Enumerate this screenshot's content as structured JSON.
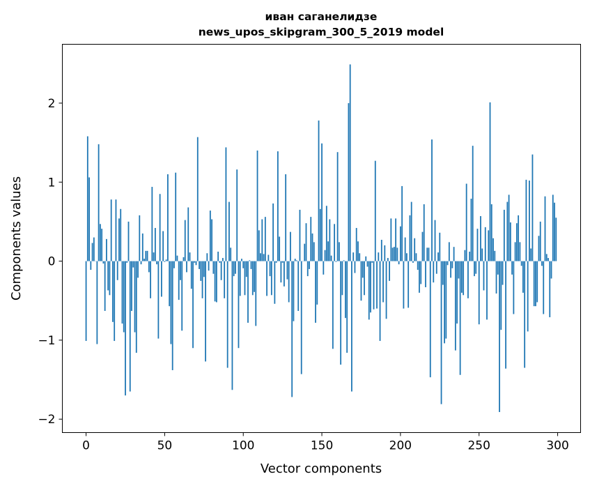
{
  "chart_data": {
    "type": "bar",
    "title": [
      "иван саганелидзе",
      "news_upos_skipgram_300_5_2019 model"
    ],
    "xlabel": "Vector components",
    "ylabel": "Components values",
    "xlim": [
      -15.1,
      314.6
    ],
    "ylim": [
      -2.17,
      2.745
    ],
    "xticks": [
      0,
      50,
      100,
      150,
      200,
      250,
      300
    ],
    "xtick_labels": [
      "0",
      "50",
      "100",
      "150",
      "200",
      "250",
      "300"
    ],
    "yticks": [
      -2,
      -1,
      0,
      1,
      2
    ],
    "ytick_labels": [
      "−2",
      "−1",
      "0",
      "1",
      "2"
    ],
    "grid": false,
    "color": "#1f77b4",
    "values": [
      -1.01,
      1.58,
      1.06,
      -0.11,
      0.23,
      0.3,
      0.0,
      -1.05,
      1.48,
      0.47,
      0.41,
      -0.03,
      -0.63,
      0.28,
      -0.37,
      -0.43,
      0.78,
      -0.77,
      -1.01,
      0.78,
      -0.24,
      0.54,
      0.66,
      -0.79,
      -0.9,
      -1.7,
      -0.02,
      0.5,
      -1.65,
      -0.63,
      -0.08,
      -0.9,
      -1.16,
      -0.21,
      0.58,
      -0.04,
      0.35,
      0.03,
      0.13,
      0.13,
      -0.14,
      -0.47,
      0.94,
      0.11,
      0.42,
      -0.04,
      -0.98,
      0.85,
      -0.45,
      0.38,
      -0.01,
      0.02,
      1.1,
      -0.57,
      -1.05,
      -1.38,
      -0.09,
      1.12,
      0.07,
      -0.49,
      -0.24,
      -0.88,
      0.05,
      0.52,
      -0.14,
      0.68,
      0.11,
      -0.35,
      -1.1,
      -0.02,
      -0.05,
      1.57,
      -0.1,
      -0.25,
      -0.47,
      -0.2,
      -1.27,
      0.1,
      -0.12,
      0.64,
      0.53,
      -0.16,
      -0.51,
      -0.52,
      0.12,
      -0.02,
      -0.24,
      0.04,
      -0.47,
      1.44,
      -1.35,
      0.75,
      0.17,
      -1.63,
      -0.19,
      -0.16,
      1.16,
      -1.1,
      -0.44,
      0.03,
      -0.09,
      -0.43,
      -0.2,
      -0.78,
      0.01,
      -0.1,
      -0.43,
      -0.39,
      -0.82,
      1.4,
      0.39,
      0.1,
      0.53,
      0.09,
      0.56,
      -0.44,
      0.08,
      -0.19,
      -0.43,
      0.73,
      -0.54,
      -0.02,
      1.39,
      0.31,
      -0.27,
      -0.02,
      -0.32,
      1.1,
      -0.23,
      -0.52,
      0.37,
      -1.72,
      -0.76,
      0.03,
      0.01,
      -0.63,
      0.65,
      -1.43,
      0.0,
      0.22,
      0.48,
      -0.19,
      -0.1,
      0.56,
      0.35,
      0.24,
      -0.78,
      -0.55,
      1.78,
      0.66,
      1.49,
      -0.17,
      0.14,
      0.7,
      0.25,
      0.53,
      0.07,
      -1.11,
      0.47,
      -0.01,
      1.38,
      0.24,
      -1.31,
      -0.43,
      0.01,
      -0.72,
      -1.16,
      2.0,
      2.49,
      -1.65,
      0.11,
      -0.15,
      0.42,
      0.25,
      0.1,
      -0.5,
      -0.21,
      -0.43,
      0.06,
      -0.07,
      -0.74,
      -0.65,
      -0.02,
      -0.61,
      1.27,
      -0.6,
      0.11,
      -1.01,
      0.27,
      -0.52,
      0.2,
      -0.73,
      0.04,
      -0.25,
      0.54,
      0.17,
      0.18,
      0.54,
      0.17,
      -0.04,
      0.44,
      0.95,
      -0.6,
      0.3,
      0.1,
      -0.59,
      0.58,
      0.75,
      -0.02,
      0.29,
      0.1,
      -0.11,
      -0.4,
      -0.29,
      0.37,
      0.72,
      -0.33,
      0.17,
      0.17,
      -1.47,
      1.54,
      -0.27,
      0.52,
      -0.16,
      0.11,
      0.36,
      -1.81,
      -0.3,
      -1.04,
      -0.98,
      -0.05,
      0.24,
      -0.21,
      -0.09,
      0.18,
      -1.13,
      -0.79,
      -0.22,
      -1.44,
      -0.4,
      -0.43,
      0.14,
      0.98,
      -0.47,
      0.12,
      0.79,
      1.46,
      -0.19,
      -0.16,
      0.41,
      -0.8,
      0.57,
      0.16,
      -0.37,
      0.43,
      -0.74,
      0.39,
      2.01,
      0.72,
      0.29,
      0.13,
      -0.41,
      -0.17,
      -1.91,
      -0.87,
      -0.3,
      0.65,
      -1.36,
      0.75,
      0.84,
      0.49,
      -0.17,
      -0.67,
      0.24,
      0.48,
      0.58,
      0.24,
      -0.06,
      -0.4,
      -1.35,
      1.03,
      -0.89,
      1.02,
      0.16,
      1.35,
      -0.57,
      -0.57,
      -0.52,
      0.32,
      0.5,
      -0.06,
      -0.67,
      0.82,
      0.09,
      0.04,
      -0.71,
      -0.22,
      0.84,
      0.74,
      0.55
    ]
  }
}
